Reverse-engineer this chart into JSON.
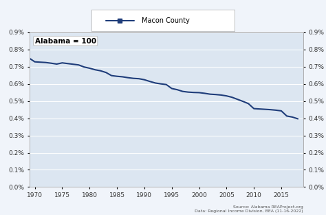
{
  "title": "Macon County",
  "ylabel_left": "",
  "ylabel_right": "",
  "annotation": "Alabama = 100",
  "source_text": "Source: Alabama REAProject.org\nData: Regional Income Division, BEA (11-16-2022)",
  "line_color": "#1f3d7a",
  "background_color": "#dce6f1",
  "plot_bg_color": "#dce6f1",
  "outer_bg_color": "#f0f4fa",
  "ylim": [
    0.0,
    0.009
  ],
  "xlim": [
    1969,
    2019
  ],
  "yticks": [
    0.0,
    0.001,
    0.002,
    0.003,
    0.004,
    0.005,
    0.006,
    0.007,
    0.008,
    0.009
  ],
  "ytick_labels": [
    "0.0%",
    "0.1%",
    "0.2%",
    "0.3%",
    "0.4%",
    "0.5%",
    "0.6%",
    "0.7%",
    "0.8%",
    "0.9%"
  ],
  "xticks": [
    1970,
    1975,
    1980,
    1985,
    1990,
    1995,
    2000,
    2005,
    2010,
    2015
  ],
  "years": [
    1969,
    1970,
    1971,
    1972,
    1973,
    1974,
    1975,
    1976,
    1977,
    1978,
    1979,
    1980,
    1981,
    1982,
    1983,
    1984,
    1985,
    1986,
    1987,
    1988,
    1989,
    1990,
    1991,
    1992,
    1993,
    1994,
    1995,
    1996,
    1997,
    1998,
    1999,
    2000,
    2001,
    2002,
    2003,
    2004,
    2005,
    2006,
    2007,
    2008,
    2009,
    2010,
    2011,
    2012,
    2013,
    2014,
    2015,
    2016,
    2017,
    2018
  ],
  "values": [
    0.00749,
    0.00728,
    0.00726,
    0.00724,
    0.0072,
    0.00715,
    0.00722,
    0.00718,
    0.00714,
    0.0071,
    0.00698,
    0.00691,
    0.00682,
    0.00676,
    0.00666,
    0.00648,
    0.00644,
    0.00641,
    0.00636,
    0.00632,
    0.0063,
    0.00624,
    0.00614,
    0.00605,
    0.006,
    0.00596,
    0.00573,
    0.00566,
    0.00556,
    0.00552,
    0.0055,
    0.00549,
    0.00545,
    0.0054,
    0.00538,
    0.00535,
    0.0053,
    0.00522,
    0.0051,
    0.00498,
    0.00485,
    0.00456,
    0.00454,
    0.00452,
    0.0045,
    0.00447,
    0.00443,
    0.00413,
    0.00407,
    0.00397
  ]
}
